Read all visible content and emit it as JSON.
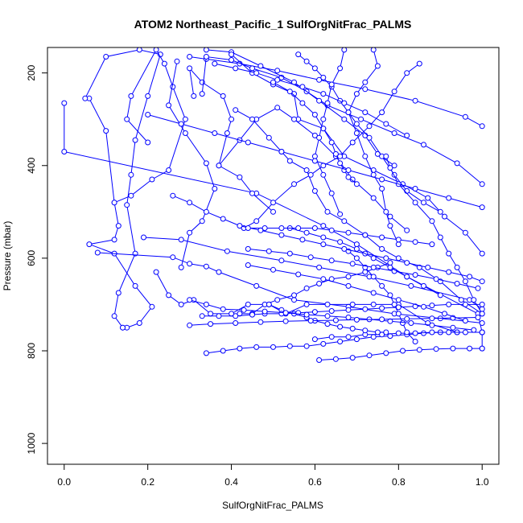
{
  "colors": {
    "series": "#0000ff",
    "axis": "#000000",
    "background": "#ffffff"
  },
  "chart_data": {
    "type": "line",
    "title": "ATOM2 Northeast_Pacific_1 SulfOrgNitFrac_PALMS",
    "xlabel": "SulfOrgNitFrac_PALMS",
    "ylabel": "Pressure (mbar)",
    "xlim": [
      -0.04,
      1.04
    ],
    "ylim": [
      1045,
      145
    ],
    "y_inverted": true,
    "grid": false,
    "legend": "none",
    "markers": "open-circle",
    "x_ticks": [
      0.0,
      0.2,
      0.4,
      0.6,
      0.8,
      1.0
    ],
    "x_tick_labels": [
      "0.0",
      "0.2",
      "0.4",
      "0.6",
      "0.8",
      "1.0"
    ],
    "y_ticks": [
      200,
      400,
      600,
      800,
      1000
    ],
    "y_tick_labels": [
      "200",
      "400",
      "600",
      "800",
      "1000"
    ],
    "series": [
      {
        "x": [
          0.0,
          0.0,
          0.46,
          0.62,
          0.7,
          0.82,
          0.99,
          1.0,
          1.0
        ],
        "y": [
          265,
          370,
          460,
          530,
          570,
          640,
          720,
          760,
          795
        ]
      },
      {
        "x": [
          0.06,
          0.1,
          0.12,
          0.13,
          0.12,
          0.06,
          0.12,
          0.17,
          0.21,
          0.18,
          0.15,
          0.14
        ],
        "y": [
          255,
          325,
          480,
          530,
          560,
          570,
          590,
          660,
          705,
          740,
          750,
          750
        ]
      },
      {
        "x": [
          0.05,
          0.1,
          0.18,
          0.23,
          0.2,
          0.17,
          0.16,
          0.15,
          0.17,
          0.13,
          0.12,
          0.14
        ],
        "y": [
          255,
          165,
          150,
          160,
          250,
          345,
          420,
          485,
          590,
          675,
          725,
          750
        ]
      },
      {
        "x": [
          0.19,
          0.28,
          0.39,
          0.52,
          0.61,
          0.73,
          0.83,
          0.97,
          1.0
        ],
        "y": [
          555,
          560,
          585,
          605,
          620,
          640,
          660,
          690,
          710
        ]
      },
      {
        "x": [
          0.08,
          0.26,
          0.3,
          0.34,
          0.37,
          0.46,
          0.55,
          0.68,
          0.79,
          0.9,
          1.0
        ],
        "y": [
          588,
          598,
          612,
          618,
          630,
          660,
          690,
          705,
          720,
          730,
          740
        ]
      },
      {
        "x": [
          0.12,
          0.16,
          0.21,
          0.25,
          0.29,
          0.26,
          0.24,
          0.22,
          0.16,
          0.15,
          0.2
        ],
        "y": [
          480,
          465,
          430,
          410,
          300,
          230,
          180,
          150,
          250,
          300,
          350
        ]
      },
      {
        "x": [
          0.22,
          0.25,
          0.28,
          0.31,
          0.35,
          0.4,
          0.44,
          0.49,
          0.53,
          0.58,
          0.63,
          0.69,
          0.74,
          0.8,
          0.87,
          0.94,
          1.0
        ],
        "y": [
          630,
          680,
          700,
          690,
          720,
          720,
          700,
          700,
          720,
          700,
          700,
          700,
          700,
          700,
          740,
          760,
          760
        ]
      },
      {
        "x": [
          0.27,
          0.25,
          0.29,
          0.34,
          0.36,
          0.33,
          0.3,
          0.28
        ],
        "y": [
          175,
          270,
          330,
          395,
          450,
          520,
          545,
          620
        ]
      },
      {
        "x": [
          0.3,
          0.34,
          0.42,
          0.51,
          0.61,
          0.72,
          0.84,
          0.96,
          1.0
        ],
        "y": [
          165,
          170,
          180,
          195,
          215,
          235,
          260,
          295,
          315
        ]
      },
      {
        "x": [
          0.31,
          0.3,
          0.33,
          0.38,
          0.4,
          0.39,
          0.37,
          0.42,
          0.45,
          0.5
        ],
        "y": [
          250,
          190,
          220,
          250,
          300,
          330,
          400,
          425,
          460,
          500
        ]
      },
      {
        "x": [
          0.33,
          0.34,
          0.4,
          0.45,
          0.52,
          0.58,
          0.63,
          0.71,
          0.79,
          0.86,
          0.94,
          1.0
        ],
        "y": [
          245,
          165,
          172,
          190,
          210,
          240,
          270,
          300,
          330,
          355,
          395,
          440
        ]
      },
      {
        "x": [
          0.34,
          0.4,
          0.47,
          0.55,
          0.61,
          0.67,
          0.72,
          0.75,
          0.79
        ],
        "y": [
          150,
          155,
          185,
          220,
          260,
          300,
          335,
          375,
          400
        ]
      },
      {
        "x": [
          0.4,
          0.45,
          0.5,
          0.55,
          0.56,
          0.62,
          0.67,
          0.74,
          0.81,
          0.87,
          0.91,
          0.96,
          1.0
        ],
        "y": [
          160,
          200,
          225,
          245,
          300,
          320,
          380,
          410,
          440,
          470,
          510,
          545,
          590
        ]
      },
      {
        "x": [
          0.37,
          0.42,
          0.46,
          0.51,
          0.55,
          0.6,
          0.65,
          0.69,
          0.74,
          0.78,
          0.82
        ],
        "y": [
          400,
          345,
          300,
          275,
          300,
          335,
          380,
          430,
          470,
          510,
          540
        ]
      },
      {
        "x": [
          0.41,
          0.45,
          0.49,
          0.52,
          0.54,
          0.58,
          0.6,
          0.63,
          0.67,
          0.72,
          0.76,
          0.8,
          0.85,
          0.9,
          0.95,
          1.0
        ],
        "y": [
          280,
          300,
          340,
          370,
          390,
          410,
          455,
          500,
          520,
          550,
          580,
          600,
          620,
          650,
          690,
          720
        ]
      },
      {
        "x": [
          0.43,
          0.46,
          0.5,
          0.55,
          0.59,
          0.62,
          0.66,
          0.69,
          0.73,
          0.76,
          0.79,
          0.82,
          0.85
        ],
        "y": [
          535,
          520,
          480,
          440,
          420,
          400,
          380,
          350,
          315,
          285,
          240,
          200,
          180
        ]
      },
      {
        "x": [
          0.42,
          0.45,
          0.48,
          0.51,
          0.55,
          0.58,
          0.61,
          0.64,
          0.68,
          0.72,
          0.75,
          0.78
        ],
        "y": [
          720,
          720,
          700,
          690,
          680,
          665,
          655,
          645,
          640,
          630,
          620,
          610
        ]
      },
      {
        "x": [
          0.34,
          0.38,
          0.42,
          0.46,
          0.5,
          0.54,
          0.58,
          0.62,
          0.66,
          0.7,
          0.74,
          0.78,
          0.82,
          0.86,
          0.9,
          0.94,
          1.0
        ],
        "y": [
          805,
          800,
          795,
          792,
          792,
          790,
          790,
          785,
          780,
          775,
          770,
          768,
          765,
          762,
          760,
          760,
          760
        ]
      },
      {
        "x": [
          0.6,
          0.64,
          0.68,
          0.72,
          0.76,
          0.8,
          0.84,
          0.88,
          0.92,
          0.96,
          1.0
        ],
        "y": [
          775,
          770,
          770,
          765,
          765,
          762,
          762,
          760,
          760,
          760,
          760
        ]
      },
      {
        "x": [
          0.61,
          0.65,
          0.69,
          0.73,
          0.77,
          0.81,
          0.85,
          0.89,
          0.93,
          0.97,
          1.0
        ],
        "y": [
          820,
          818,
          815,
          810,
          805,
          800,
          798,
          796,
          795,
          795,
          795
        ]
      },
      {
        "x": [
          0.49,
          0.52,
          0.55,
          0.58,
          0.6,
          0.63,
          0.66,
          0.69,
          0.72,
          0.75,
          0.77
        ],
        "y": [
          700,
          712,
          720,
          728,
          735,
          742,
          748,
          752,
          756,
          760,
          760
        ]
      },
      {
        "x": [
          0.5,
          0.54,
          0.57,
          0.6,
          0.62,
          0.64,
          0.65,
          0.66,
          0.67,
          0.68,
          0.7
        ],
        "y": [
          220,
          240,
          265,
          290,
          320,
          350,
          375,
          395,
          410,
          425,
          440
        ]
      },
      {
        "x": [
          0.56,
          0.58,
          0.6,
          0.62,
          0.64,
          0.66,
          0.68,
          0.7,
          0.73,
          0.76,
          0.79,
          0.82,
          0.86,
          0.9
        ],
        "y": [
          160,
          175,
          190,
          210,
          230,
          260,
          285,
          310,
          340,
          380,
          420,
          455,
          480,
          500
        ]
      },
      {
        "x": [
          0.67,
          0.66,
          0.64,
          0.63,
          0.62,
          0.61,
          0.6,
          0.62,
          0.64,
          0.66
        ],
        "y": [
          150,
          190,
          225,
          265,
          300,
          340,
          380,
          420,
          460,
          505
        ]
      },
      {
        "x": [
          0.74,
          0.75,
          0.72,
          0.7,
          0.68,
          0.7,
          0.72,
          0.74,
          0.76,
          0.77,
          0.78,
          0.8
        ],
        "y": [
          150,
          185,
          220,
          245,
          285,
          330,
          380,
          420,
          450,
          500,
          530,
          570
        ]
      },
      {
        "x": [
          0.77,
          0.78,
          0.8,
          0.84,
          0.88,
          0.9,
          0.92,
          0.94,
          0.96,
          0.98,
          1.0
        ],
        "y": [
          380,
          405,
          440,
          480,
          520,
          555,
          590,
          620,
          650,
          690,
          720
        ]
      },
      {
        "x": [
          0.68,
          0.7,
          0.72,
          0.74,
          0.76,
          0.78,
          0.79,
          0.8,
          0.81,
          0.82,
          0.84
        ],
        "y": [
          585,
          600,
          620,
          640,
          660,
          680,
          700,
          720,
          740,
          760,
          780
        ]
      },
      {
        "x": [
          0.33,
          0.37,
          0.41,
          0.45,
          0.48,
          0.52,
          0.56,
          0.6,
          0.64,
          0.68,
          0.72,
          0.76,
          0.8,
          0.84,
          0.88,
          0.92,
          0.96,
          1.0
        ],
        "y": [
          725,
          725,
          725,
          722,
          720,
          720,
          718,
          716,
          714,
          712,
          710,
          708,
          706,
          704,
          702,
          700,
          700,
          700
        ]
      },
      {
        "x": [
          0.26,
          0.3,
          0.34,
          0.38,
          0.42,
          0.47,
          0.52,
          0.57,
          0.62,
          0.67,
          0.72,
          0.77,
          0.82,
          0.87,
          0.92,
          0.97,
          1.0
        ],
        "y": [
          465,
          480,
          500,
          515,
          530,
          540,
          550,
          560,
          570,
          580,
          590,
          600,
          610,
          620,
          630,
          640,
          650
        ]
      },
      {
        "x": [
          0.3,
          0.34,
          0.38,
          0.43,
          0.48,
          0.53,
          0.58,
          0.63,
          0.68,
          0.73,
          0.78,
          0.83,
          0.88,
          0.93,
          0.98
        ],
        "y": [
          690,
          700,
          710,
          712,
          715,
          718,
          722,
          725,
          728,
          732,
          736,
          740,
          745,
          750,
          755
        ]
      },
      {
        "x": [
          0.3,
          0.35,
          0.41,
          0.47,
          0.53,
          0.59,
          0.65,
          0.7,
          0.76,
          0.82,
          0.88,
          0.93,
          0.99
        ],
        "y": [
          745,
          742,
          740,
          738,
          736,
          735,
          734,
          733,
          732,
          731,
          730,
          729,
          728
        ]
      },
      {
        "x": [
          0.2,
          0.28,
          0.36,
          0.44,
          0.52,
          0.6,
          0.68,
          0.76,
          0.84,
          0.92,
          1.0
        ],
        "y": [
          290,
          310,
          330,
          350,
          370,
          390,
          410,
          430,
          450,
          470,
          490
        ]
      },
      {
        "x": [
          0.36,
          0.41,
          0.46,
          0.51,
          0.57,
          0.62,
          0.67,
          0.72,
          0.77,
          0.82
        ],
        "y": [
          180,
          190,
          200,
          215,
          230,
          245,
          265,
          285,
          310,
          335
        ]
      },
      {
        "x": [
          0.44,
          0.5,
          0.56,
          0.62,
          0.68,
          0.74,
          0.8,
          0.86,
          0.91,
          0.96
        ],
        "y": [
          615,
          625,
          635,
          645,
          660,
          675,
          690,
          705,
          720,
          735
        ]
      },
      {
        "x": [
          0.44,
          0.49,
          0.54,
          0.59,
          0.64,
          0.69,
          0.74,
          0.79,
          0.84,
          0.89,
          0.94,
          0.99
        ],
        "y": [
          580,
          585,
          590,
          598,
          605,
          612,
          620,
          628,
          636,
          645,
          655,
          665
        ]
      },
      {
        "x": [
          0.54,
          0.58,
          0.62,
          0.66,
          0.7,
          0.74,
          0.78,
          0.82,
          0.86,
          0.9
        ],
        "y": [
          535,
          545,
          555,
          565,
          580,
          600,
          620,
          640,
          660,
          680
        ]
      },
      {
        "x": [
          0.44,
          0.48,
          0.52,
          0.56,
          0.6,
          0.64,
          0.68,
          0.72,
          0.76,
          0.8,
          0.84,
          0.88
        ],
        "y": [
          535,
          535,
          535,
          535,
          535,
          540,
          545,
          550,
          555,
          560,
          565,
          570
        ]
      }
    ]
  }
}
